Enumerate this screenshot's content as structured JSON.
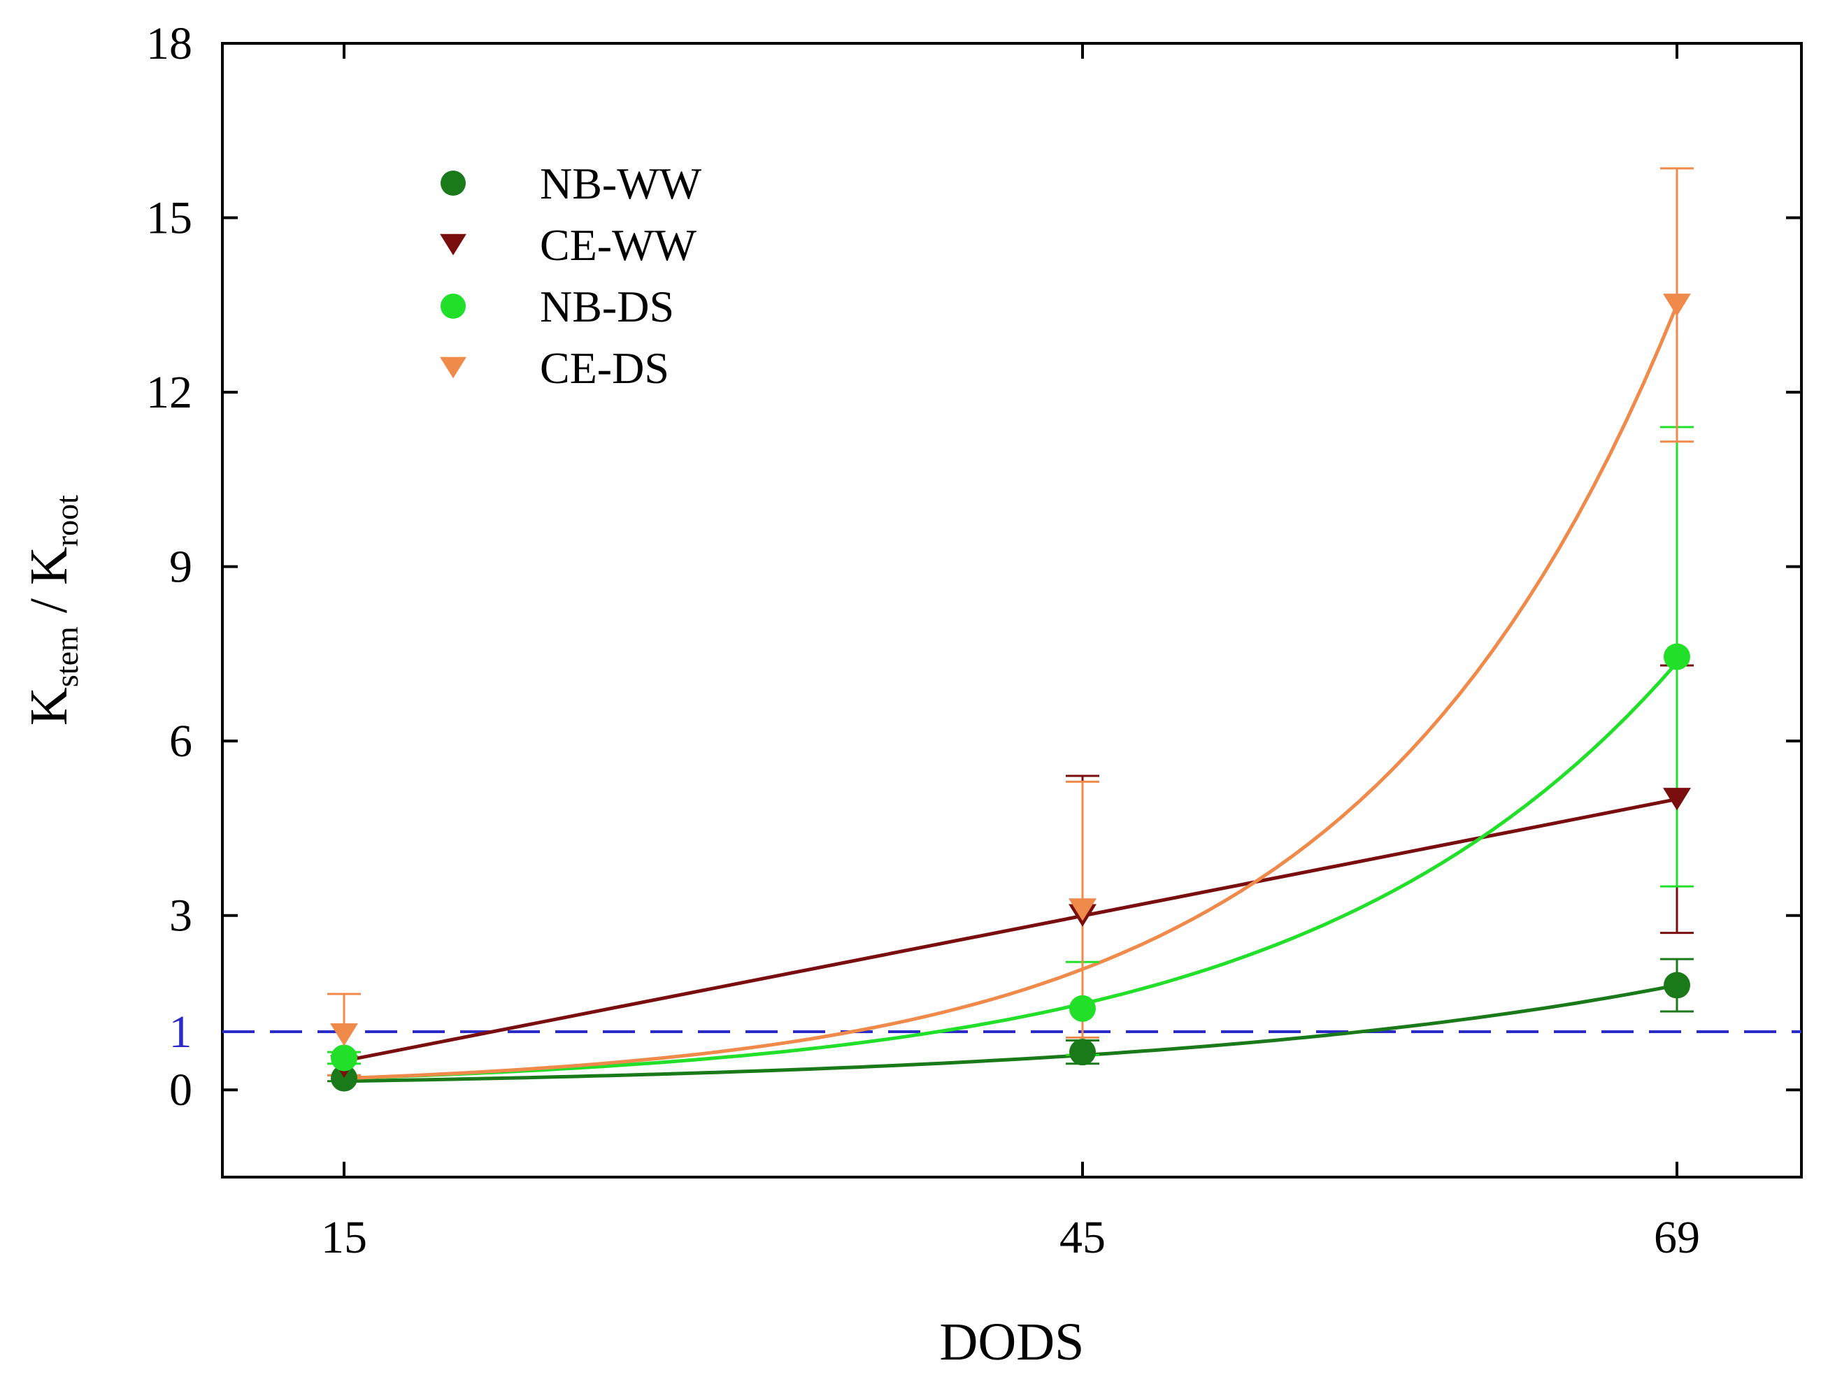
{
  "chart_data": {
    "type": "scatter",
    "title": "",
    "xlabel": "DODS",
    "ylabel": {
      "main": "K",
      "sub1": "stem",
      "divider": " / ",
      "main2": "K",
      "sub2": "root"
    },
    "x_ticks": [
      "15",
      "45",
      "69"
    ],
    "x_values": [
      15,
      45,
      69
    ],
    "x_positions": [
      0,
      1,
      2
    ],
    "y_ticks": [
      "0",
      "3",
      "6",
      "9",
      "12",
      "15",
      "18"
    ],
    "ylim": [
      -1.5,
      18
    ],
    "reference_line": {
      "value": 1,
      "label": "1",
      "color": "#2b2bc8"
    },
    "legend_position": "upper-left",
    "series": [
      {
        "name": "NB-WW",
        "marker": "circle",
        "color": "#1a7a1a",
        "points": [
          {
            "x": 15,
            "y": 0.2,
            "err": 0.05
          },
          {
            "x": 45,
            "y": 0.65,
            "err": 0.2
          },
          {
            "x": 69,
            "y": 1.8,
            "err": 0.45
          }
        ],
        "fit": "exponential",
        "fit_values": [
          0.15,
          0.52,
          1.8
        ]
      },
      {
        "name": "CE-WW",
        "marker": "triangle-down",
        "color": "#7a0e0e",
        "points": [
          {
            "x": 15,
            "y": 0.4,
            "err": 0.0
          },
          {
            "x": 45,
            "y": 3.0,
            "err": 2.4
          },
          {
            "x": 69,
            "y": 5.0,
            "err": 2.3
          }
        ],
        "fit": "linear",
        "fit_values": [
          0.5,
          3.0,
          5.0
        ]
      },
      {
        "name": "NB-DS",
        "marker": "circle",
        "color": "#22e02a",
        "points": [
          {
            "x": 15,
            "y": 0.55,
            "err": 0.1
          },
          {
            "x": 45,
            "y": 1.4,
            "err": 0.8
          },
          {
            "x": 69,
            "y": 7.45,
            "err": 3.95
          }
        ],
        "fit": "exponential",
        "fit_values": [
          0.2,
          1.35,
          7.35
        ]
      },
      {
        "name": "CE-DS",
        "marker": "triangle-down",
        "color": "#f08a4b",
        "points": [
          {
            "x": 15,
            "y": 0.95,
            "err": 0.7
          },
          {
            "x": 45,
            "y": 3.1,
            "err": 2.2
          },
          {
            "x": 69,
            "y": 13.5,
            "err": 2.35
          }
        ],
        "fit": "exponential",
        "fit_values": [
          0.2,
          2.2,
          13.5
        ]
      }
    ]
  }
}
